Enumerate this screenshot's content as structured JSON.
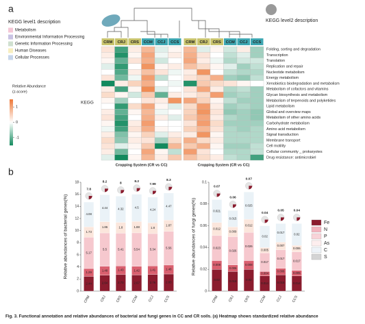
{
  "panel_a": {
    "label": "a",
    "level1_title": "KEGG level1 description",
    "level1_items": [
      {
        "name": "Metabolism",
        "color": "#f4c7d6"
      },
      {
        "name": "Environmental Information Processing",
        "color": "#c9c3e3"
      },
      {
        "name": "Genetic Information Processing",
        "color": "#cfe0cf"
      },
      {
        "name": "Human Diseases",
        "color": "#f7eec0"
      },
      {
        "name": "Cellular Processes",
        "color": "#c6d5ea"
      }
    ],
    "level2_title": "KEGG level2 description",
    "kegg_label": "KEGG",
    "colorbar": {
      "title": [
        "Relative Abundance",
        "(z-score)"
      ],
      "clim": [
        -1.5,
        1.5
      ],
      "ticks": [
        1,
        0,
        -1
      ],
      "low": "#138a5e",
      "mid": "#ffffff",
      "high": "#ee7a3a"
    },
    "columns": [
      "CRM",
      "CRJ",
      "CRS",
      "CCM",
      "CCJ",
      "CCS"
    ],
    "rows": [
      "Folding, sorting and degradation",
      "Transcription",
      "Translation",
      "Replication and repair",
      "Nucleotide metabolism",
      "Energy metabolism",
      "Xenobiotics biodegradation and metabolism",
      "Metabolism of cofactors and vitamins",
      "Glycan biosynthesis and metabolism",
      "Metabolism of terpenoids and polyketides",
      "Lipid metabolism",
      "Global and overview maps",
      "Metabolism of other amino acids",
      "Carbohydrate metabolism",
      "Amino acid metabolism",
      "Signal transduction",
      "Membrane transport",
      "Cell motility",
      "Cellular community _ prokaryotes",
      "Drug resistance: antimicrobiel"
    ],
    "heatmaps": [
      {
        "xlabel": "Cropping System (CR vs CC)",
        "values": [
          [
            0.3,
            -1.2,
            0.2,
            0.8,
            -0.2,
            0.1
          ],
          [
            0.2,
            -1.4,
            0.1,
            1.0,
            -0.1,
            0.2
          ],
          [
            0.1,
            -1.0,
            0.3,
            0.9,
            -0.3,
            0.0
          ],
          [
            -0.2,
            -1.3,
            0.0,
            1.2,
            0.1,
            0.2
          ],
          [
            0.0,
            -1.1,
            0.2,
            0.7,
            0.3,
            -0.1
          ],
          [
            0.3,
            -0.9,
            -0.1,
            1.1,
            -0.4,
            0.0
          ],
          [
            -1.5,
            0.2,
            0.5,
            0.9,
            0.0,
            -0.1
          ],
          [
            0.2,
            -1.2,
            0.1,
            1.3,
            -0.2,
            0.0
          ],
          [
            0.4,
            0.1,
            -0.3,
            0.6,
            -1.0,
            0.2
          ],
          [
            0.1,
            -0.6,
            0.0,
            0.3,
            0.2,
            1.2
          ],
          [
            0.0,
            -1.3,
            0.4,
            1.0,
            0.1,
            -0.2
          ],
          [
            0.2,
            -1.0,
            0.1,
            0.8,
            -0.1,
            0.0
          ],
          [
            0.3,
            -1.2,
            0.0,
            0.9,
            0.2,
            -0.2
          ],
          [
            0.1,
            -1.4,
            0.2,
            1.1,
            0.0,
            0.0
          ],
          [
            -0.1,
            -1.2,
            0.3,
            0.9,
            0.1,
            0.0
          ],
          [
            0.2,
            -0.8,
            0.1,
            0.5,
            -0.2,
            0.2
          ],
          [
            0.4,
            -0.7,
            0.2,
            0.3,
            -0.6,
            0.4
          ],
          [
            0.3,
            -0.2,
            0.1,
            0.6,
            -1.6,
            0.8
          ],
          [
            0.2,
            -0.9,
            0.0,
            1.0,
            0.1,
            -0.4
          ],
          [
            -0.2,
            -1.6,
            0.1,
            0.8,
            0.2,
            0.6
          ]
        ]
      },
      {
        "xlabel": "Cropping System (CR vs CC)",
        "values": [
          [
            0.8,
            -0.2,
            0.1,
            -0.3,
            0.2,
            -0.6
          ],
          [
            0.9,
            0.3,
            0.0,
            -0.4,
            -0.2,
            -0.6
          ],
          [
            1.0,
            0.2,
            -0.1,
            -0.5,
            -0.3,
            -0.3
          ],
          [
            0.7,
            0.4,
            0.1,
            -0.2,
            -0.6,
            -0.4
          ],
          [
            0.2,
            1.2,
            0.0,
            -0.4,
            -0.5,
            -0.5
          ],
          [
            0.3,
            0.5,
            0.9,
            -0.6,
            -0.7,
            -0.4
          ],
          [
            -1.4,
            0.6,
            0.4,
            0.3,
            0.1,
            0.0
          ],
          [
            0.3,
            1.0,
            0.2,
            -0.5,
            -0.4,
            -0.6
          ],
          [
            0.2,
            0.4,
            1.1,
            -0.6,
            -0.5,
            -0.6
          ],
          [
            1.0,
            0.5,
            0.1,
            -0.4,
            -0.6,
            -0.6
          ],
          [
            0.4,
            1.1,
            0.2,
            -0.6,
            -0.5,
            -0.6
          ],
          [
            0.5,
            1.2,
            0.3,
            -0.7,
            -0.6,
            -0.7
          ],
          [
            0.6,
            1.0,
            0.2,
            -0.5,
            -0.6,
            -0.7
          ],
          [
            0.3,
            1.1,
            0.4,
            -0.6,
            -0.6,
            -0.6
          ],
          [
            0.5,
            0.8,
            0.3,
            -0.5,
            -0.6,
            -0.5
          ],
          [
            0.2,
            1.2,
            0.1,
            -0.5,
            -0.5,
            -0.5
          ],
          [
            0.9,
            0.4,
            0.2,
            -0.5,
            -0.5,
            -0.5
          ],
          [
            0.6,
            0.9,
            0.1,
            -0.6,
            -0.6,
            -0.4
          ],
          [
            1.1,
            0.3,
            0.0,
            -0.5,
            -0.5,
            -0.4
          ],
          [
            0.7,
            0.4,
            0.2,
            -0.4,
            -0.5,
            -1.2
          ]
        ]
      }
    ]
  },
  "panel_b": {
    "label": "b",
    "categories": [
      "CRM",
      "CRJ",
      "CRS",
      "CCM",
      "CCJ",
      "CCS"
    ],
    "legend": [
      {
        "name": "Fe",
        "color": "#8b1c2e"
      },
      {
        "name": "N",
        "color": "#f2b3bd"
      },
      {
        "name": "P",
        "color": "#f8d3d8"
      },
      {
        "name": "As",
        "color": "#fdeeee"
      },
      {
        "name": "C",
        "color": "#eef3f8"
      },
      {
        "name": "S",
        "color": "#d4d4d4"
      }
    ],
    "charts": [
      {
        "ylabel": "Relative abundances of bacterial genes(%)",
        "ylim": [
          0,
          18
        ],
        "yticks": [
          0,
          2,
          4,
          6,
          8,
          10,
          12,
          14,
          16,
          18
        ],
        "series": [
          {
            "name": "Fe",
            "color": "#8b1c2e",
            "values": [
              2.44,
              2.64,
              2.73,
              2.67,
              2.76,
              2.83
            ]
          },
          {
            "name": "N",
            "color": "#d9606f",
            "values": [
              1.29,
              1.48,
              1.43,
              1.42,
              1.41,
              1.48
            ]
          },
          {
            "name": "P",
            "color": "#f6c8ce",
            "values": [
              5.17,
              5.5,
              5.41,
              5.54,
              5.34,
              5.56
            ]
          },
          {
            "name": "As",
            "color": "#fbe6dc",
            "values": [
              1.73,
              1.86,
              1.8,
              1.88,
              1.8,
              1.87
            ]
          },
          {
            "name": "C",
            "color": "#eaf2f7",
            "values": [
              4.08,
              4.44,
              4.32,
              4.5,
              4.24,
              4.47
            ]
          }
        ],
        "top_values": [
          7.8,
          8.2,
          8.0,
          8.2,
          7.99,
          8.3
        ]
      },
      {
        "ylabel": "Relative abundances of fungi genes(%)",
        "ylim": [
          0,
          0.1
        ],
        "yticks": [
          0,
          0.02,
          0.04,
          0.06,
          0.08,
          0.1
        ],
        "series": [
          {
            "name": "Fe",
            "color": "#8b1c2e",
            "values": [
              0.02,
              0.018,
              0.02,
              0.014,
              0.015,
              0.014
            ]
          },
          {
            "name": "N",
            "color": "#d9606f",
            "values": [
              0.008,
              0.006,
              0.008,
              0.004,
              0.006,
              0.005
            ]
          },
          {
            "name": "P",
            "color": "#f6c8ce",
            "values": [
              0.023,
              0.026,
              0.026,
              0.017,
              0.017,
              0.017
            ]
          },
          {
            "name": "As",
            "color": "#fbe6dc",
            "values": [
              0.012,
              0.009,
              0.012,
              0.005,
              0.007,
              0.006
            ]
          },
          {
            "name": "C",
            "color": "#eaf2f7",
            "values": [
              0.021,
              0.015,
              0.025,
              0.02,
              0.017,
              0.02
            ]
          }
        ],
        "top_values": [
          0.07,
          0.06,
          0.07,
          0.04,
          0.05,
          0.04
        ]
      }
    ]
  },
  "caption": "Fig. 3. Functional annotation and relative abundances of bacterial and fungi genes in CC and CR soils. (a) Heatmap shows standardized relative abundance"
}
